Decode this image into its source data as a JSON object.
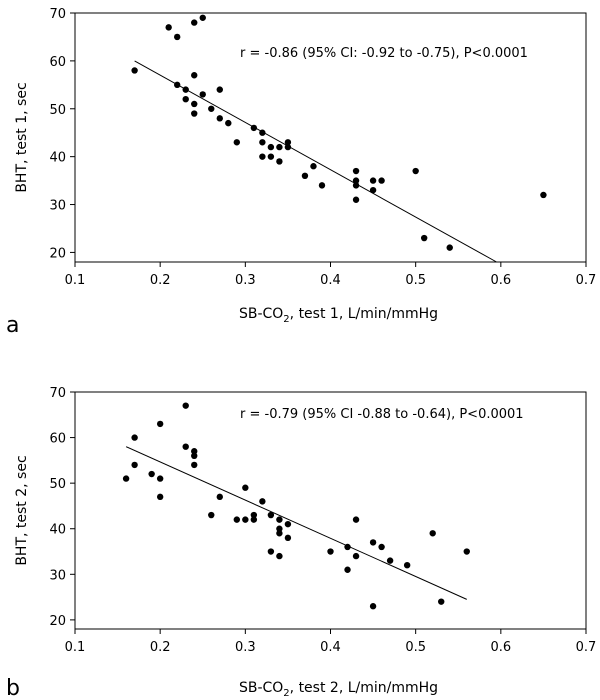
{
  "chart_data": [
    {
      "type": "scatter",
      "panel_label": "a",
      "annotation": "r = -0.86 (95% CI: -0.92 to -0.75), P<0.0001",
      "ylabel": "BHT, test 1, sec",
      "xlabel": {
        "pre": "SB-CO",
        "sub": "2",
        "post": ", test 1, L/min/mmHg"
      },
      "xlim": [
        0.1,
        0.7
      ],
      "ylim": [
        18,
        70
      ],
      "xticks": [
        0.1,
        0.2,
        0.3,
        0.4,
        0.5,
        0.6,
        0.7
      ],
      "yticks": [
        20,
        30,
        40,
        50,
        60,
        70
      ],
      "grid": false,
      "points": [
        [
          0.17,
          58
        ],
        [
          0.21,
          67
        ],
        [
          0.22,
          65
        ],
        [
          0.24,
          68
        ],
        [
          0.25,
          69
        ],
        [
          0.22,
          55
        ],
        [
          0.24,
          57
        ],
        [
          0.23,
          54
        ],
        [
          0.23,
          52
        ],
        [
          0.25,
          53
        ],
        [
          0.24,
          51
        ],
        [
          0.24,
          49
        ],
        [
          0.26,
          50
        ],
        [
          0.27,
          54
        ],
        [
          0.27,
          48
        ],
        [
          0.28,
          47
        ],
        [
          0.29,
          43
        ],
        [
          0.31,
          46
        ],
        [
          0.32,
          45
        ],
        [
          0.32,
          43
        ],
        [
          0.32,
          40
        ],
        [
          0.33,
          42
        ],
        [
          0.33,
          40
        ],
        [
          0.34,
          42
        ],
        [
          0.34,
          39
        ],
        [
          0.35,
          43
        ],
        [
          0.35,
          42
        ],
        [
          0.37,
          36
        ],
        [
          0.38,
          38
        ],
        [
          0.39,
          34
        ],
        [
          0.43,
          37
        ],
        [
          0.43,
          35
        ],
        [
          0.43,
          34
        ],
        [
          0.43,
          31
        ],
        [
          0.45,
          35
        ],
        [
          0.45,
          33
        ],
        [
          0.46,
          35
        ],
        [
          0.5,
          37
        ],
        [
          0.51,
          23
        ],
        [
          0.54,
          21
        ],
        [
          0.65,
          32
        ]
      ],
      "fit_line": {
        "x": [
          0.17,
          0.595
        ],
        "y": [
          60,
          18
        ]
      }
    },
    {
      "type": "scatter",
      "panel_label": "b",
      "annotation": "r = -0.79 (95% CI -0.88 to -0.64), P<0.0001",
      "ylabel": "BHT, test 2, sec",
      "xlabel": {
        "pre": "SB-CO",
        "sub": "2",
        "post": ", test 2, L/min/mmHg"
      },
      "xlim": [
        0.1,
        0.7
      ],
      "ylim": [
        18,
        70
      ],
      "xticks": [
        0.1,
        0.2,
        0.3,
        0.4,
        0.5,
        0.6,
        0.7
      ],
      "yticks": [
        20,
        30,
        40,
        50,
        60,
        70
      ],
      "grid": false,
      "points": [
        [
          0.16,
          51
        ],
        [
          0.17,
          60
        ],
        [
          0.17,
          54
        ],
        [
          0.19,
          52
        ],
        [
          0.2,
          63
        ],
        [
          0.2,
          51
        ],
        [
          0.2,
          47
        ],
        [
          0.23,
          67
        ],
        [
          0.23,
          58
        ],
        [
          0.24,
          57
        ],
        [
          0.24,
          56
        ],
        [
          0.24,
          54
        ],
        [
          0.26,
          43
        ],
        [
          0.27,
          47
        ],
        [
          0.29,
          42
        ],
        [
          0.3,
          49
        ],
        [
          0.3,
          42
        ],
        [
          0.31,
          43
        ],
        [
          0.31,
          42
        ],
        [
          0.32,
          46
        ],
        [
          0.33,
          43
        ],
        [
          0.33,
          35
        ],
        [
          0.34,
          42
        ],
        [
          0.34,
          40
        ],
        [
          0.34,
          39
        ],
        [
          0.34,
          34
        ],
        [
          0.35,
          41
        ],
        [
          0.35,
          38
        ],
        [
          0.4,
          35
        ],
        [
          0.42,
          36
        ],
        [
          0.42,
          31
        ],
        [
          0.43,
          42
        ],
        [
          0.43,
          34
        ],
        [
          0.45,
          37
        ],
        [
          0.45,
          23
        ],
        [
          0.46,
          36
        ],
        [
          0.47,
          33
        ],
        [
          0.49,
          32
        ],
        [
          0.52,
          39
        ],
        [
          0.53,
          24
        ],
        [
          0.56,
          35
        ]
      ],
      "fit_line": {
        "x": [
          0.16,
          0.56
        ],
        "y": [
          58,
          24.5
        ]
      }
    }
  ]
}
